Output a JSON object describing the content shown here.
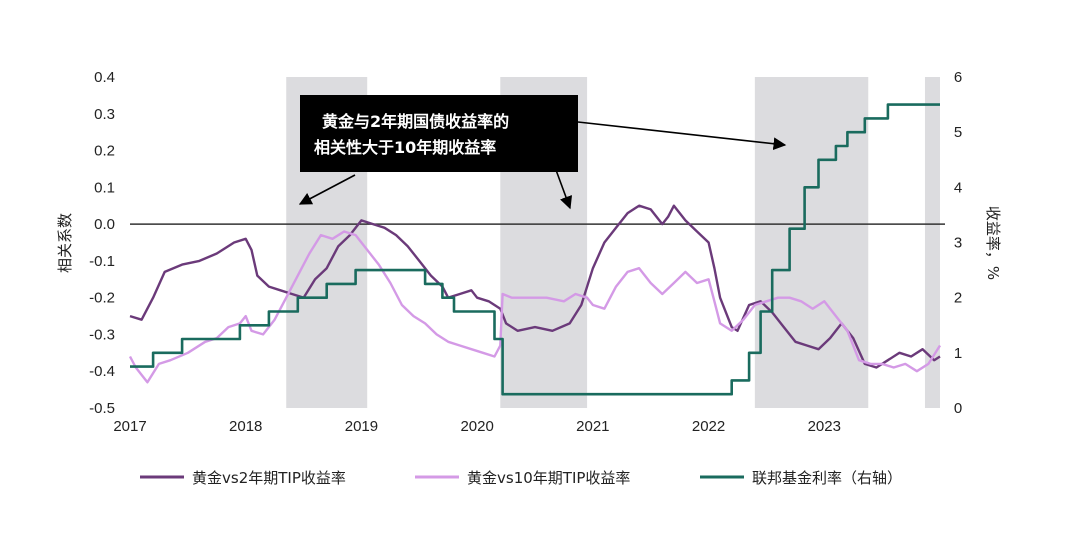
{
  "chart_data": {
    "type": "line",
    "title": "",
    "ylabel_left": "相关系数",
    "ylabel_right": "收益率，%",
    "x_ticks": [
      "2017",
      "2018",
      "2019",
      "2020",
      "2021",
      "2022",
      "2023"
    ],
    "xlim": [
      2017.0,
      2024.0
    ],
    "ylim_left": [
      -0.5,
      0.4
    ],
    "ylim_right": [
      0,
      6
    ],
    "y_left_ticks": [
      "0.4",
      "0.3",
      "0.2",
      "0.1",
      "0.0",
      "-0.1",
      "-0.2",
      "-0.3",
      "-0.4",
      "-0.5"
    ],
    "y_right_ticks": [
      "6",
      "5",
      "4",
      "3",
      "2",
      "1",
      "0"
    ],
    "reference_line_left": 0.0,
    "shaded_periods": [
      [
        2018.35,
        2019.05
      ],
      [
        2020.2,
        2020.95
      ],
      [
        2022.4,
        2023.38
      ],
      [
        2023.87,
        2024.0
      ]
    ],
    "annotation": {
      "line1": "黄金与2年期国债收益率的",
      "line2": "相关性大于10年期收益率"
    },
    "series": [
      {
        "name": "黄金vs2年期TIP收益率",
        "color": "#6b3a7a",
        "axis": "left",
        "points": [
          [
            2017.0,
            -0.25
          ],
          [
            2017.1,
            -0.26
          ],
          [
            2017.2,
            -0.2
          ],
          [
            2017.3,
            -0.13
          ],
          [
            2017.45,
            -0.11
          ],
          [
            2017.6,
            -0.1
          ],
          [
            2017.75,
            -0.08
          ],
          [
            2017.9,
            -0.05
          ],
          [
            2018.0,
            -0.04
          ],
          [
            2018.05,
            -0.07
          ],
          [
            2018.1,
            -0.14
          ],
          [
            2018.2,
            -0.17
          ],
          [
            2018.3,
            -0.18
          ],
          [
            2018.4,
            -0.19
          ],
          [
            2018.5,
            -0.2
          ],
          [
            2018.6,
            -0.15
          ],
          [
            2018.7,
            -0.12
          ],
          [
            2018.8,
            -0.06
          ],
          [
            2018.9,
            -0.03
          ],
          [
            2019.0,
            0.01
          ],
          [
            2019.1,
            0.0
          ],
          [
            2019.2,
            -0.01
          ],
          [
            2019.3,
            -0.03
          ],
          [
            2019.4,
            -0.06
          ],
          [
            2019.5,
            -0.1
          ],
          [
            2019.6,
            -0.14
          ],
          [
            2019.7,
            -0.17
          ],
          [
            2019.75,
            -0.2
          ],
          [
            2019.85,
            -0.19
          ],
          [
            2019.95,
            -0.18
          ],
          [
            2020.0,
            -0.2
          ],
          [
            2020.1,
            -0.21
          ],
          [
            2020.2,
            -0.23
          ],
          [
            2020.25,
            -0.27
          ],
          [
            2020.35,
            -0.29
          ],
          [
            2020.5,
            -0.28
          ],
          [
            2020.65,
            -0.29
          ],
          [
            2020.8,
            -0.27
          ],
          [
            2020.9,
            -0.22
          ],
          [
            2021.0,
            -0.12
          ],
          [
            2021.1,
            -0.05
          ],
          [
            2021.2,
            -0.01
          ],
          [
            2021.3,
            0.03
          ],
          [
            2021.4,
            0.05
          ],
          [
            2021.5,
            0.04
          ],
          [
            2021.6,
            0.0
          ],
          [
            2021.65,
            0.02
          ],
          [
            2021.7,
            0.05
          ],
          [
            2021.8,
            0.01
          ],
          [
            2021.9,
            -0.02
          ],
          [
            2022.0,
            -0.05
          ],
          [
            2022.05,
            -0.12
          ],
          [
            2022.1,
            -0.2
          ],
          [
            2022.2,
            -0.28
          ],
          [
            2022.25,
            -0.29
          ],
          [
            2022.35,
            -0.22
          ],
          [
            2022.45,
            -0.21
          ],
          [
            2022.55,
            -0.24
          ],
          [
            2022.65,
            -0.28
          ],
          [
            2022.75,
            -0.32
          ],
          [
            2022.85,
            -0.33
          ],
          [
            2022.95,
            -0.34
          ],
          [
            2023.05,
            -0.31
          ],
          [
            2023.15,
            -0.27
          ],
          [
            2023.25,
            -0.31
          ],
          [
            2023.35,
            -0.38
          ],
          [
            2023.45,
            -0.39
          ],
          [
            2023.55,
            -0.37
          ],
          [
            2023.65,
            -0.35
          ],
          [
            2023.75,
            -0.36
          ],
          [
            2023.85,
            -0.34
          ],
          [
            2023.95,
            -0.37
          ],
          [
            2024.0,
            -0.36
          ]
        ]
      },
      {
        "name": "黄金vs10年期TIP收益率",
        "color": "#d49ae6",
        "axis": "left",
        "points": [
          [
            2017.0,
            -0.36
          ],
          [
            2017.05,
            -0.39
          ],
          [
            2017.15,
            -0.43
          ],
          [
            2017.25,
            -0.38
          ],
          [
            2017.35,
            -0.37
          ],
          [
            2017.5,
            -0.35
          ],
          [
            2017.65,
            -0.32
          ],
          [
            2017.75,
            -0.31
          ],
          [
            2017.85,
            -0.28
          ],
          [
            2017.95,
            -0.27
          ],
          [
            2018.0,
            -0.25
          ],
          [
            2018.05,
            -0.29
          ],
          [
            2018.15,
            -0.3
          ],
          [
            2018.25,
            -0.26
          ],
          [
            2018.35,
            -0.2
          ],
          [
            2018.45,
            -0.14
          ],
          [
            2018.55,
            -0.08
          ],
          [
            2018.65,
            -0.03
          ],
          [
            2018.75,
            -0.04
          ],
          [
            2018.85,
            -0.02
          ],
          [
            2018.95,
            -0.03
          ],
          [
            2019.05,
            -0.07
          ],
          [
            2019.15,
            -0.11
          ],
          [
            2019.25,
            -0.16
          ],
          [
            2019.35,
            -0.22
          ],
          [
            2019.45,
            -0.25
          ],
          [
            2019.55,
            -0.27
          ],
          [
            2019.65,
            -0.3
          ],
          [
            2019.75,
            -0.32
          ],
          [
            2019.85,
            -0.33
          ],
          [
            2019.95,
            -0.34
          ],
          [
            2020.05,
            -0.35
          ],
          [
            2020.15,
            -0.36
          ],
          [
            2020.2,
            -0.33
          ],
          [
            2020.22,
            -0.19
          ],
          [
            2020.3,
            -0.2
          ],
          [
            2020.45,
            -0.2
          ],
          [
            2020.6,
            -0.2
          ],
          [
            2020.75,
            -0.21
          ],
          [
            2020.85,
            -0.19
          ],
          [
            2020.95,
            -0.2
          ],
          [
            2021.0,
            -0.22
          ],
          [
            2021.1,
            -0.23
          ],
          [
            2021.2,
            -0.17
          ],
          [
            2021.3,
            -0.13
          ],
          [
            2021.4,
            -0.12
          ],
          [
            2021.5,
            -0.16
          ],
          [
            2021.6,
            -0.19
          ],
          [
            2021.7,
            -0.16
          ],
          [
            2021.8,
            -0.13
          ],
          [
            2021.9,
            -0.16
          ],
          [
            2022.0,
            -0.15
          ],
          [
            2022.05,
            -0.21
          ],
          [
            2022.1,
            -0.27
          ],
          [
            2022.2,
            -0.29
          ],
          [
            2022.3,
            -0.26
          ],
          [
            2022.4,
            -0.22
          ],
          [
            2022.5,
            -0.21
          ],
          [
            2022.6,
            -0.2
          ],
          [
            2022.7,
            -0.2
          ],
          [
            2022.8,
            -0.21
          ],
          [
            2022.9,
            -0.23
          ],
          [
            2023.0,
            -0.21
          ],
          [
            2023.1,
            -0.25
          ],
          [
            2023.2,
            -0.29
          ],
          [
            2023.3,
            -0.37
          ],
          [
            2023.4,
            -0.38
          ],
          [
            2023.5,
            -0.38
          ],
          [
            2023.6,
            -0.39
          ],
          [
            2023.7,
            -0.38
          ],
          [
            2023.8,
            -0.4
          ],
          [
            2023.9,
            -0.38
          ],
          [
            2024.0,
            -0.33
          ]
        ]
      },
      {
        "name": "联邦基金利率（右轴）",
        "color": "#1a6b5e",
        "axis": "right",
        "points": [
          [
            2017.0,
            0.75
          ],
          [
            2017.2,
            0.75
          ],
          [
            2017.2,
            1.0
          ],
          [
            2017.45,
            1.0
          ],
          [
            2017.45,
            1.25
          ],
          [
            2017.95,
            1.25
          ],
          [
            2017.95,
            1.5
          ],
          [
            2018.2,
            1.5
          ],
          [
            2018.2,
            1.75
          ],
          [
            2018.45,
            1.75
          ],
          [
            2018.45,
            2.0
          ],
          [
            2018.7,
            2.0
          ],
          [
            2018.7,
            2.25
          ],
          [
            2018.95,
            2.25
          ],
          [
            2018.95,
            2.5
          ],
          [
            2019.55,
            2.5
          ],
          [
            2019.55,
            2.25
          ],
          [
            2019.7,
            2.25
          ],
          [
            2019.7,
            2.0
          ],
          [
            2019.8,
            2.0
          ],
          [
            2019.8,
            1.75
          ],
          [
            2020.15,
            1.75
          ],
          [
            2020.15,
            1.25
          ],
          [
            2020.22,
            1.25
          ],
          [
            2020.22,
            0.25
          ],
          [
            2022.2,
            0.25
          ],
          [
            2022.2,
            0.5
          ],
          [
            2022.35,
            0.5
          ],
          [
            2022.35,
            1.0
          ],
          [
            2022.45,
            1.0
          ],
          [
            2022.45,
            1.75
          ],
          [
            2022.55,
            1.75
          ],
          [
            2022.55,
            2.5
          ],
          [
            2022.7,
            2.5
          ],
          [
            2022.7,
            3.25
          ],
          [
            2022.83,
            3.25
          ],
          [
            2022.83,
            4.0
          ],
          [
            2022.95,
            4.0
          ],
          [
            2022.95,
            4.5
          ],
          [
            2023.1,
            4.5
          ],
          [
            2023.1,
            4.75
          ],
          [
            2023.2,
            4.75
          ],
          [
            2023.2,
            5.0
          ],
          [
            2023.35,
            5.0
          ],
          [
            2023.35,
            5.25
          ],
          [
            2023.55,
            5.25
          ],
          [
            2023.55,
            5.5
          ],
          [
            2024.0,
            5.5
          ]
        ]
      }
    ]
  }
}
